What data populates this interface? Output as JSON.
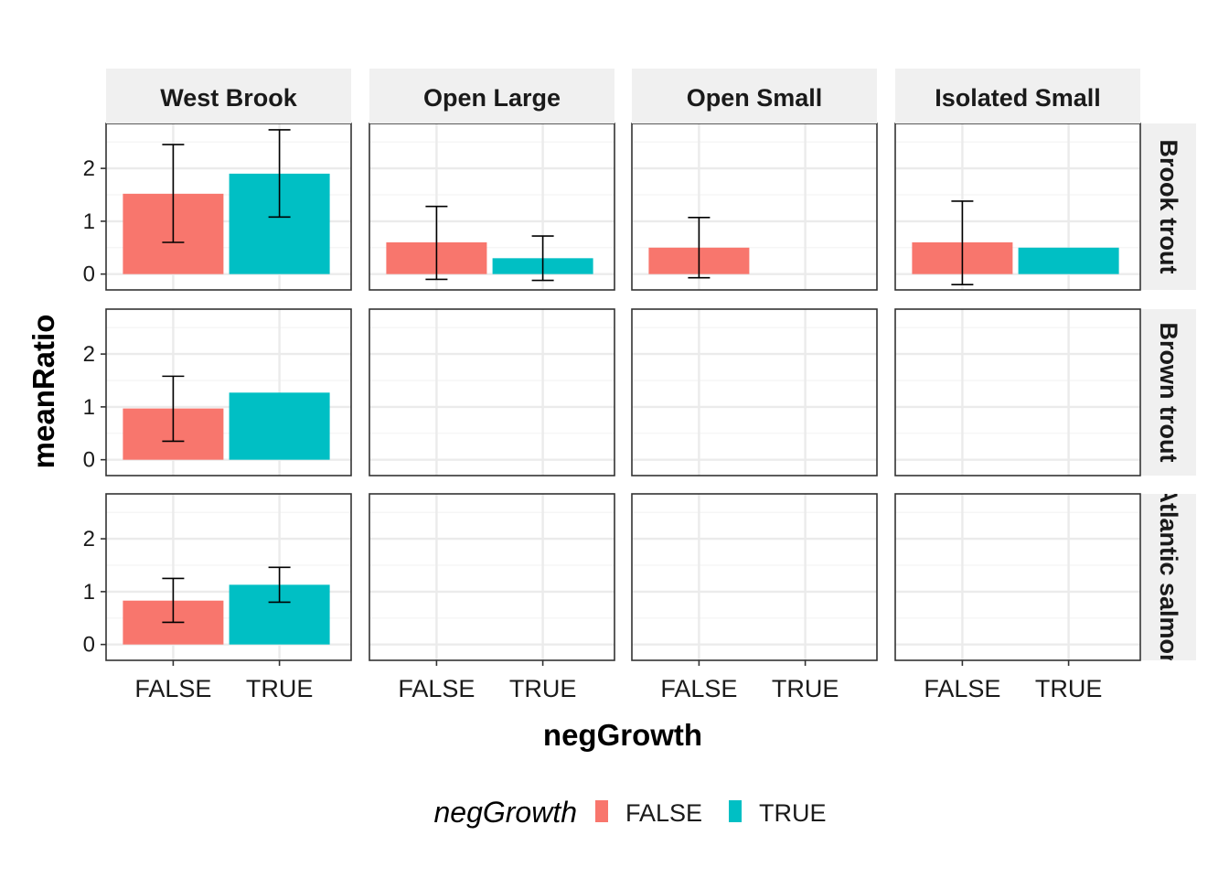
{
  "chart_data": {
    "type": "bar",
    "facet_columns": [
      "West Brook",
      "Open Large",
      "Open Small",
      "Isolated Small"
    ],
    "facet_rows": [
      "Brook trout",
      "Brown trout",
      "Atlantic salmon"
    ],
    "categories": [
      "FALSE",
      "TRUE"
    ],
    "xlabel": "negGrowth",
    "ylabel": "meanRatio",
    "ylim": [
      -0.3,
      2.85
    ],
    "yticks": [
      0,
      1,
      2
    ],
    "legend": {
      "title": "negGrowth",
      "placement": "bottom",
      "entries": [
        {
          "label": "FALSE",
          "color": "#F8766D"
        },
        {
          "label": "TRUE",
          "color": "#00BFC4"
        }
      ]
    },
    "colors": {
      "FALSE": "#F8766D",
      "TRUE": "#00BFC4"
    },
    "grid": true,
    "panels": [
      {
        "row": "Brook trout",
        "col": "West Brook",
        "bars": [
          {
            "category": "FALSE",
            "value": 1.52,
            "err_low": 0.6,
            "err_high": 2.45
          },
          {
            "category": "TRUE",
            "value": 1.9,
            "err_low": 1.08,
            "err_high": 2.73
          }
        ]
      },
      {
        "row": "Brook trout",
        "col": "Open Large",
        "bars": [
          {
            "category": "FALSE",
            "value": 0.6,
            "err_low": -0.1,
            "err_high": 1.28
          },
          {
            "category": "TRUE",
            "value": 0.3,
            "err_low": -0.12,
            "err_high": 0.72
          }
        ]
      },
      {
        "row": "Brook trout",
        "col": "Open Small",
        "bars": [
          {
            "category": "FALSE",
            "value": 0.5,
            "err_low": -0.07,
            "err_high": 1.07
          }
        ]
      },
      {
        "row": "Brook trout",
        "col": "Isolated Small",
        "bars": [
          {
            "category": "FALSE",
            "value": 0.6,
            "err_low": -0.2,
            "err_high": 1.38
          },
          {
            "category": "TRUE",
            "value": 0.5,
            "err_low": null,
            "err_high": null
          }
        ]
      },
      {
        "row": "Brown trout",
        "col": "West Brook",
        "bars": [
          {
            "category": "FALSE",
            "value": 0.97,
            "err_low": 0.35,
            "err_high": 1.58
          },
          {
            "category": "TRUE",
            "value": 1.27,
            "err_low": null,
            "err_high": null
          }
        ]
      },
      {
        "row": "Atlantic salmon",
        "col": "West Brook",
        "bars": [
          {
            "category": "FALSE",
            "value": 0.83,
            "err_low": 0.42,
            "err_high": 1.25
          },
          {
            "category": "TRUE",
            "value": 1.13,
            "err_low": 0.8,
            "err_high": 1.46
          }
        ]
      }
    ]
  }
}
